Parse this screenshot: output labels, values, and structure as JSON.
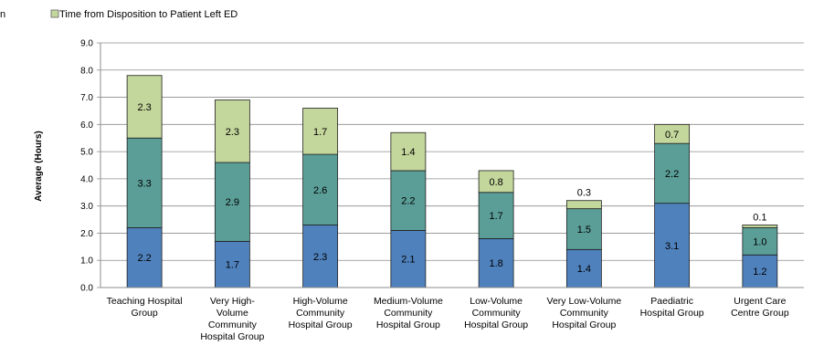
{
  "chart_data": {
    "type": "bar",
    "stacked": true,
    "ylabel": "Average (Hours)",
    "ylim": [
      0,
      9
    ],
    "yticks": [
      "0.0",
      "1.0",
      "2.0",
      "3.0",
      "4.0",
      "5.0",
      "6.0",
      "7.0",
      "8.0",
      "9.0"
    ],
    "grid": true,
    "legend_position": "top",
    "legend": {
      "truncated_prefix": "n",
      "entry": "Time from Disposition to Patient Left ED"
    },
    "categories": [
      [
        "Teaching Hospital",
        "Group"
      ],
      [
        "Very High-",
        "Volume",
        "Community",
        "Hospital Group"
      ],
      [
        "High-Volume",
        "Community",
        "Hospital Group"
      ],
      [
        "Medium-Volume",
        "Community",
        "Hospital Group"
      ],
      [
        "Low-Volume",
        "Community",
        "Hospital Group"
      ],
      [
        "Very Low-Volume",
        "Community",
        "Hospital Group"
      ],
      [
        "Paediatric",
        "Hospital Group"
      ],
      [
        "Urgent Care",
        "Centre Group"
      ]
    ],
    "series": [
      {
        "color": "#4f81bd",
        "values": [
          2.2,
          1.7,
          2.3,
          2.1,
          1.8,
          1.4,
          3.1,
          1.2
        ],
        "labels": [
          "2.2",
          "1.7",
          "2.3",
          "2.1",
          "1.8",
          "1.4",
          "3.1",
          "1.2"
        ]
      },
      {
        "color": "#5b9e98",
        "values": [
          3.3,
          2.9,
          2.6,
          2.2,
          1.7,
          1.5,
          2.2,
          1.0
        ],
        "labels": [
          "3.3",
          "2.9",
          "2.6",
          "2.2",
          "1.7",
          "1.5",
          "2.2",
          "1.0"
        ]
      },
      {
        "name": "Time from Disposition to Patient Left ED",
        "color": "#c3d69b",
        "values": [
          2.3,
          2.3,
          1.7,
          1.4,
          0.8,
          0.3,
          0.7,
          0.1
        ],
        "labels": [
          "2.3",
          "2.3",
          "1.7",
          "1.4",
          "0.8",
          "0.3",
          "0.7",
          "0.1"
        ]
      }
    ]
  }
}
